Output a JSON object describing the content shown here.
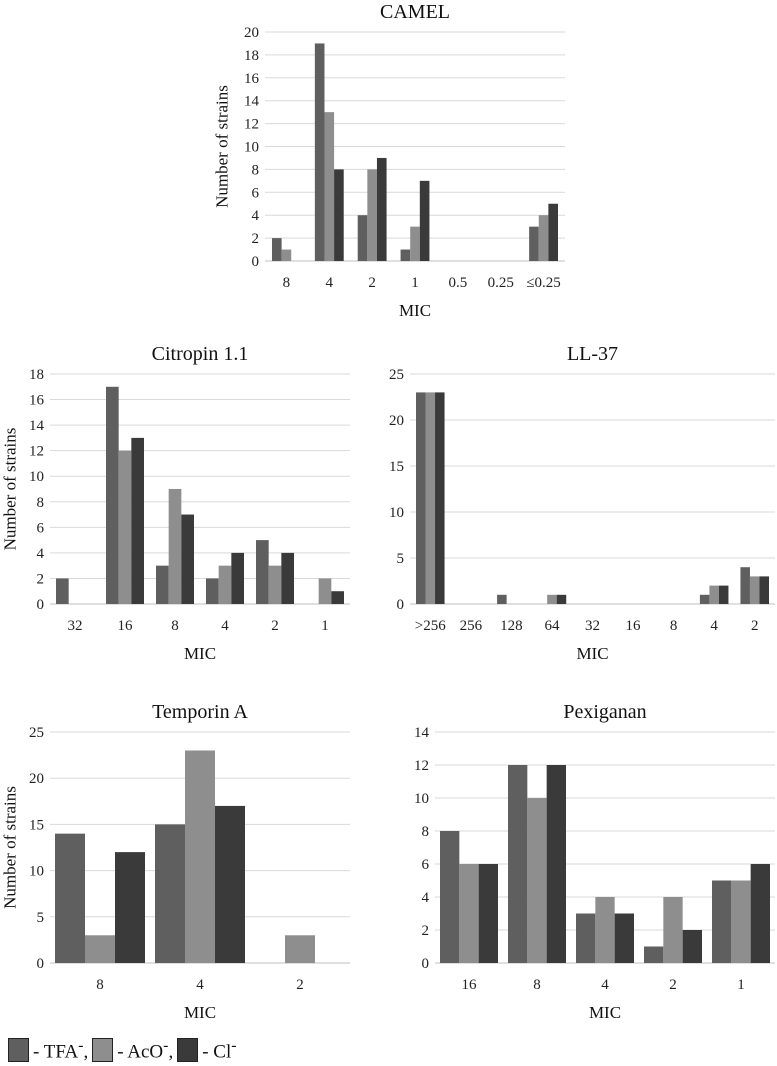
{
  "colors": {
    "tfa": "#5f5f5f",
    "aco": "#8e8e8e",
    "cl": "#3a3a3a",
    "grid": "#d9d9d9",
    "axis": "#bfbfbf"
  },
  "legend": {
    "items": [
      {
        "key": "tfa",
        "text": "- TFA",
        "sup": "-",
        "sep": ","
      },
      {
        "key": "aco",
        "text": "- AcO",
        "sup": "-",
        "sep": ","
      },
      {
        "key": "cl",
        "text": "- Cl",
        "sup": "-",
        "sep": ""
      }
    ]
  },
  "chart_data": [
    {
      "type": "bar",
      "title": "CAMEL",
      "xlabel": "MIC",
      "ylabel": "Number of strains",
      "categories": [
        "8",
        "4",
        "2",
        "1",
        "0.5",
        "0.25",
        "≤0.25"
      ],
      "ylim": [
        0,
        20
      ],
      "yticks": [
        0,
        2,
        4,
        6,
        8,
        10,
        12,
        14,
        16,
        18,
        20
      ],
      "grid": true,
      "series": [
        {
          "key": "tfa",
          "values": [
            2,
            19,
            4,
            1,
            0,
            0,
            3
          ]
        },
        {
          "key": "aco",
          "values": [
            1,
            13,
            8,
            3,
            0,
            0,
            4
          ]
        },
        {
          "key": "cl",
          "values": [
            0,
            8,
            9,
            7,
            0,
            0,
            5
          ]
        }
      ]
    },
    {
      "type": "bar",
      "title": "Citropin 1.1",
      "xlabel": "MIC",
      "ylabel": "Number of strains",
      "categories": [
        "32",
        "16",
        "8",
        "4",
        "2",
        "1"
      ],
      "ylim": [
        0,
        18
      ],
      "yticks": [
        0,
        2,
        4,
        6,
        8,
        10,
        12,
        14,
        16,
        18
      ],
      "grid": true,
      "series": [
        {
          "key": "tfa",
          "values": [
            2,
            17,
            3,
            2,
            5,
            0
          ]
        },
        {
          "key": "aco",
          "values": [
            0,
            12,
            9,
            3,
            3,
            2
          ]
        },
        {
          "key": "cl",
          "values": [
            0,
            13,
            7,
            4,
            4,
            1
          ]
        }
      ]
    },
    {
      "type": "bar",
      "title": "LL-37",
      "xlabel": "MIC",
      "ylabel": "",
      "categories": [
        ">256",
        "256",
        "128",
        "64",
        "32",
        "16",
        "8",
        "4",
        "2"
      ],
      "ylim": [
        0,
        25
      ],
      "yticks": [
        0,
        5,
        10,
        15,
        20,
        25
      ],
      "grid": true,
      "series": [
        {
          "key": "tfa",
          "values": [
            23,
            0,
            1,
            0,
            0,
            0,
            0,
            1,
            4
          ]
        },
        {
          "key": "aco",
          "values": [
            23,
            0,
            0,
            1,
            0,
            0,
            0,
            2,
            3
          ]
        },
        {
          "key": "cl",
          "values": [
            23,
            0,
            0,
            1,
            0,
            0,
            0,
            2,
            3
          ]
        }
      ]
    },
    {
      "type": "bar",
      "title": "Temporin A",
      "xlabel": "MIC",
      "ylabel": "Number of strains",
      "categories": [
        "8",
        "4",
        "2"
      ],
      "ylim": [
        0,
        25
      ],
      "yticks": [
        0,
        5,
        10,
        15,
        20,
        25
      ],
      "grid": true,
      "series": [
        {
          "key": "tfa",
          "values": [
            14,
            15,
            0
          ]
        },
        {
          "key": "aco",
          "values": [
            3,
            23,
            3
          ]
        },
        {
          "key": "cl",
          "values": [
            12,
            17,
            0
          ]
        }
      ]
    },
    {
      "type": "bar",
      "title": "Pexiganan",
      "xlabel": "MIC",
      "ylabel": "",
      "categories": [
        "16",
        "8",
        "4",
        "2",
        "1"
      ],
      "ylim": [
        0,
        14
      ],
      "yticks": [
        0,
        2,
        4,
        6,
        8,
        10,
        12,
        14
      ],
      "grid": true,
      "series": [
        {
          "key": "tfa",
          "values": [
            8,
            12,
            3,
            1,
            5
          ]
        },
        {
          "key": "aco",
          "values": [
            6,
            10,
            4,
            4,
            5
          ]
        },
        {
          "key": "cl",
          "values": [
            6,
            12,
            3,
            2,
            6
          ]
        }
      ]
    }
  ]
}
